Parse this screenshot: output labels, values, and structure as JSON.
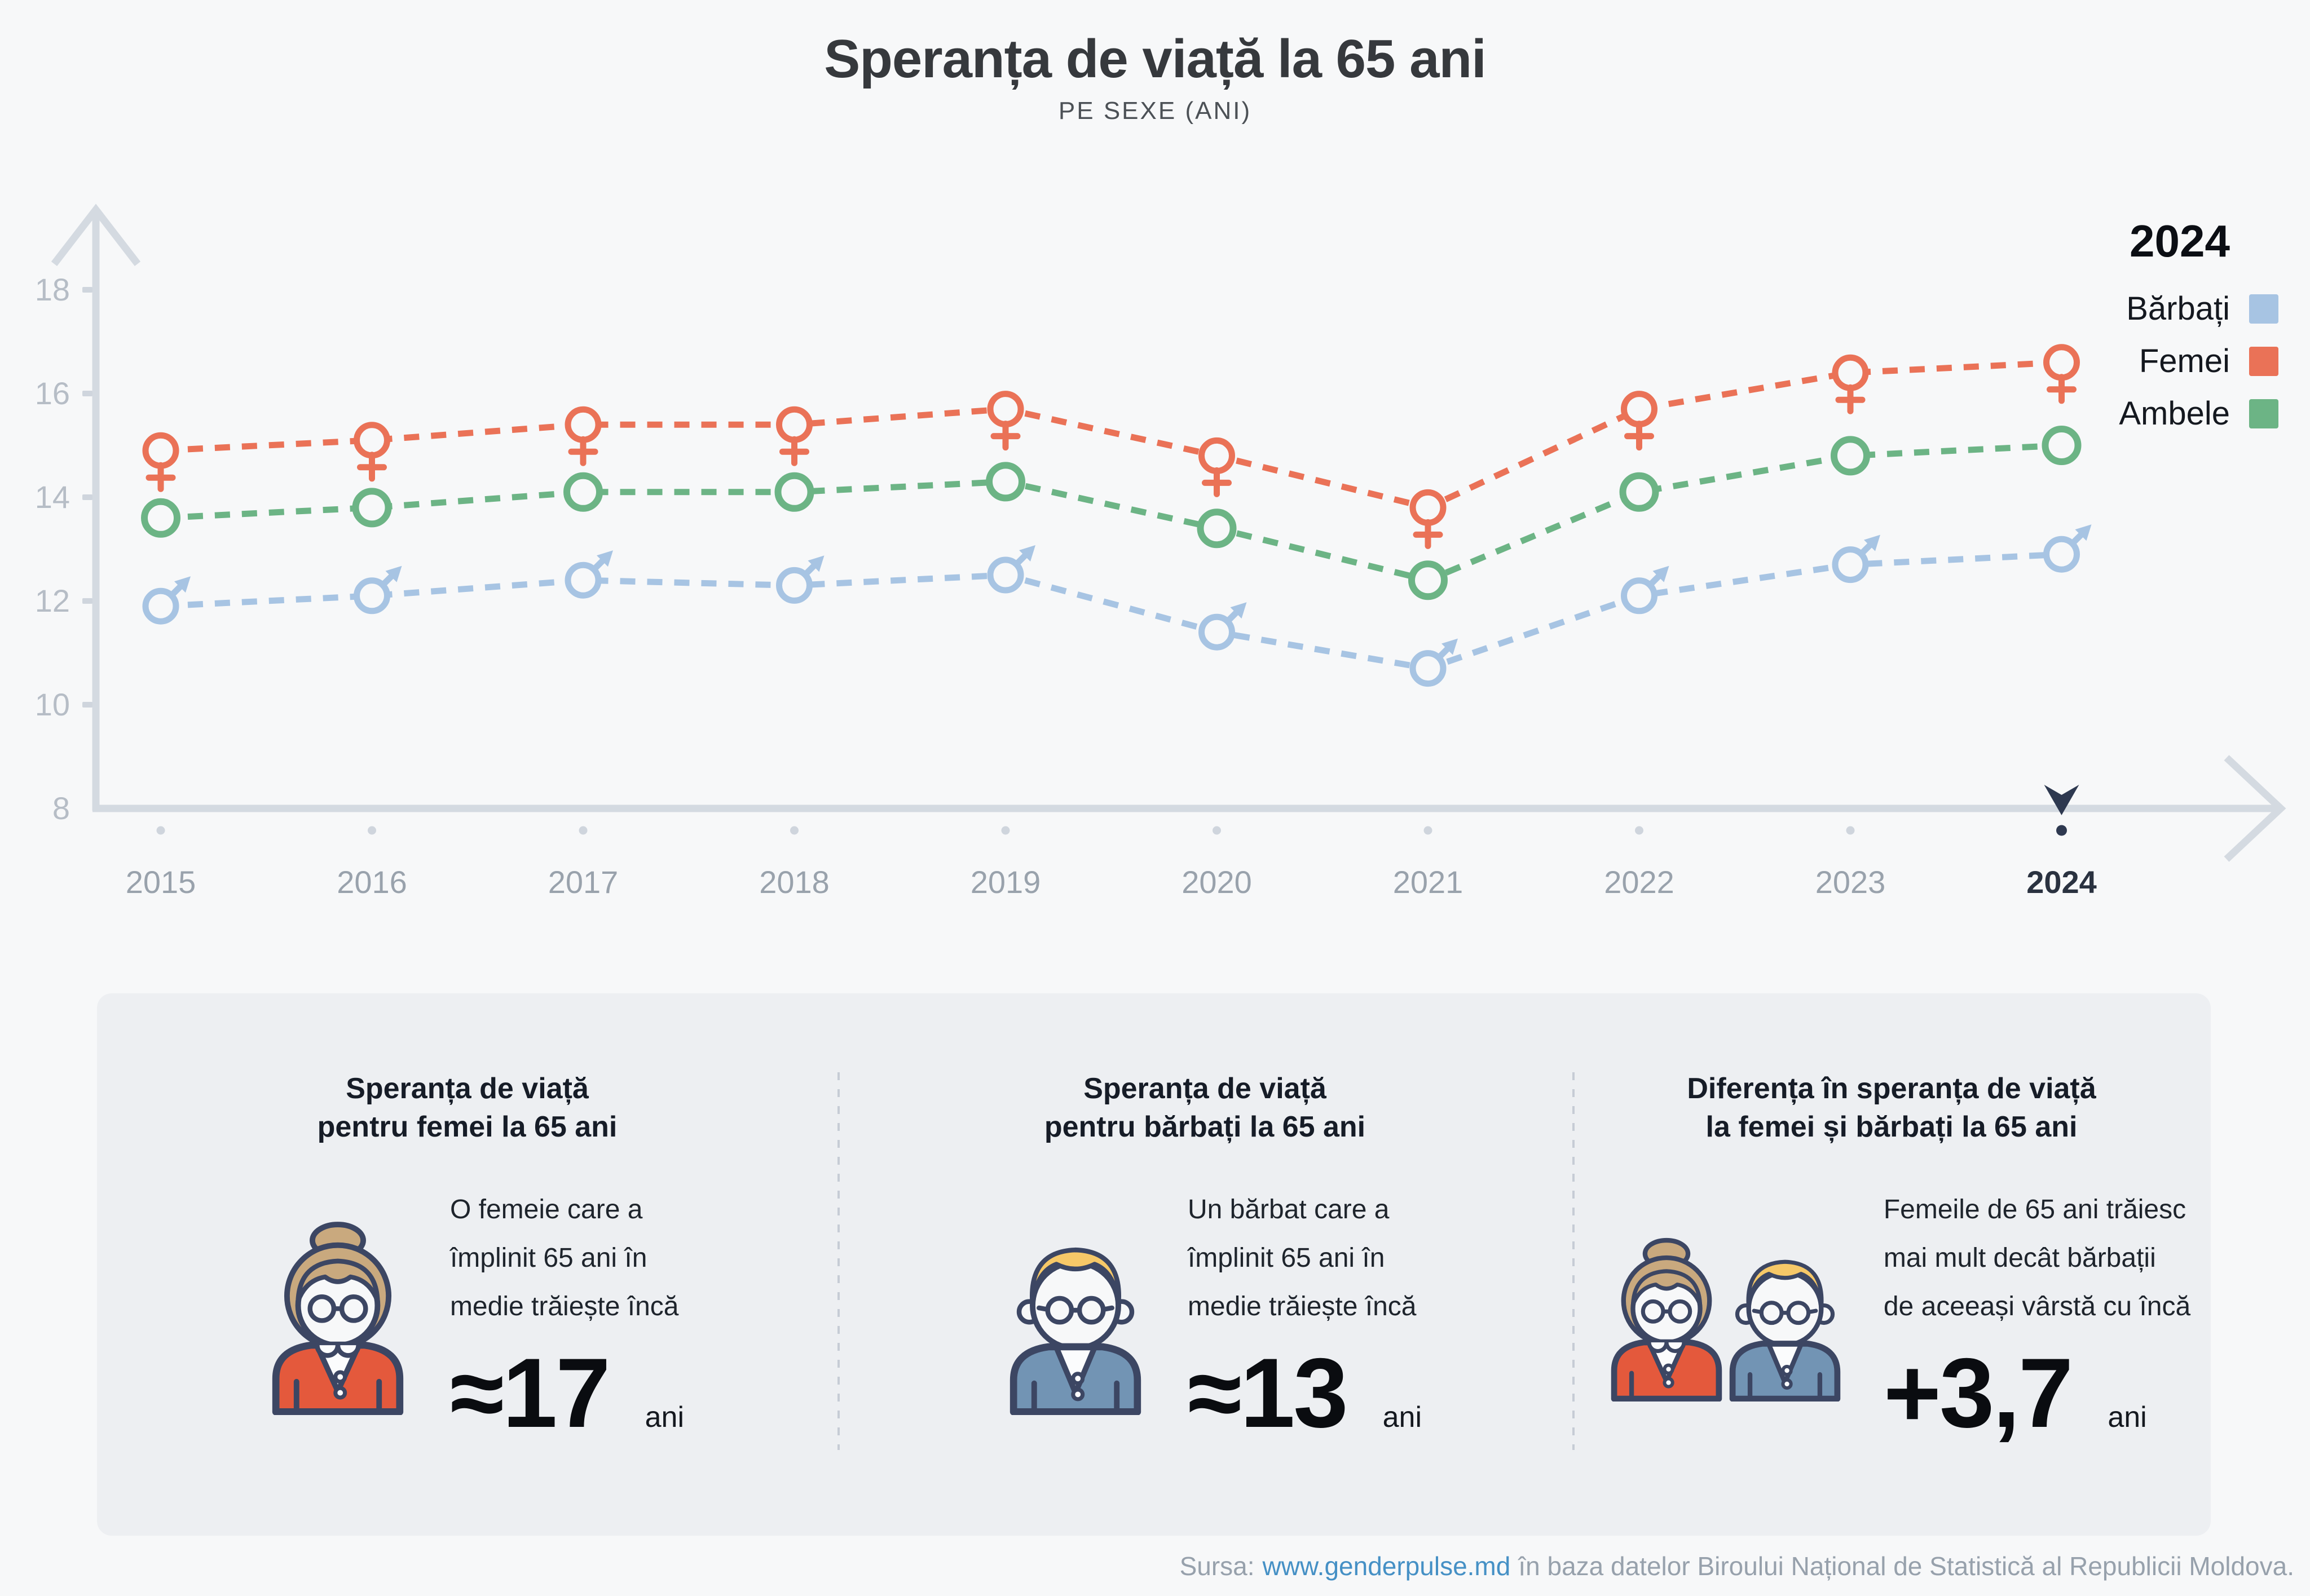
{
  "header": {
    "title": "Speranța de viață la 65 ani",
    "subtitle": "PE SEXE (ANI)"
  },
  "legend": {
    "year": "2024",
    "items": [
      {
        "label": "Bărbați",
        "color": "#A7C4E3"
      },
      {
        "label": "Femei",
        "color": "#EA7257"
      },
      {
        "label": "Ambele",
        "color": "#6CB485"
      }
    ]
  },
  "chart_data": {
    "type": "line",
    "title": "Speranța de viață la 65 ani",
    "subtitle": "PE SEXE (ANI)",
    "xlabel": "",
    "ylabel": "",
    "x": [
      2015,
      2016,
      2017,
      2018,
      2019,
      2020,
      2021,
      2022,
      2023,
      2024
    ],
    "series": [
      {
        "name": "Bărbați",
        "color": "#A7C4E3",
        "marker": "male",
        "values": [
          11.9,
          12.1,
          12.4,
          12.3,
          12.5,
          11.4,
          10.7,
          12.1,
          12.7,
          12.9
        ]
      },
      {
        "name": "Femei",
        "color": "#EA7257",
        "marker": "female",
        "values": [
          14.9,
          15.1,
          15.4,
          15.4,
          15.7,
          14.8,
          13.8,
          15.7,
          16.4,
          16.6
        ]
      },
      {
        "name": "Ambele",
        "color": "#6CB485",
        "marker": "circle",
        "values": [
          13.6,
          13.8,
          14.1,
          14.1,
          14.3,
          13.4,
          12.4,
          14.1,
          14.8,
          15.0
        ]
      }
    ],
    "ylim": [
      8,
      18
    ],
    "yticks": [
      8,
      10,
      12,
      14,
      16,
      18
    ],
    "highlight_year": 2024,
    "line_style": "dashed",
    "grid": false,
    "legend_position": "top-right"
  },
  "cards": [
    {
      "title": "Speranța de viață\npentru femei la 65 ani",
      "body": "O femeie care a\nîmplinit 65 ani în\nmedie trăiește încă",
      "value": "≈17",
      "unit": "ani"
    },
    {
      "title": "Speranța de viață\npentru bărbați la 65 ani",
      "body": "Un bărbat care a\nîmplinit 65 ani în\nmedie trăiește încă",
      "value": "≈13",
      "unit": "ani"
    },
    {
      "title": "Diferența în speranța de viață\nla femei și bărbați la 65 ani",
      "body": "Femeile de 65 ani trăiesc\nmai mult decât bărbații\nde aceeași vârstă cu încă",
      "value": "+3,7",
      "unit": "ani"
    }
  ],
  "footer": {
    "prefix": "Sursa:",
    "link": "www.genderpulse.md",
    "suffix": "în baza datelor Biroului Național de Statistică al Republicii Moldova."
  }
}
